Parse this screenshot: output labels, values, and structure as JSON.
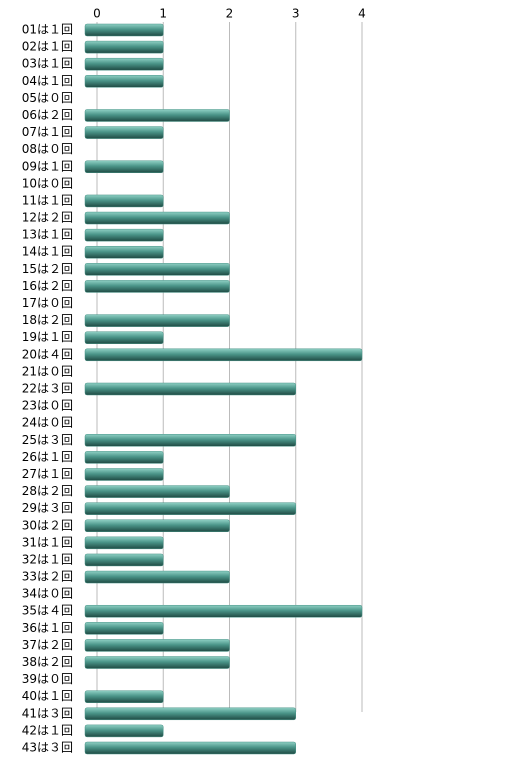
{
  "chart_data": {
    "type": "bar",
    "orientation": "horizontal",
    "categories": [
      "01は１回",
      "02は１回",
      "03は１回",
      "04は１回",
      "05は０回",
      "06は２回",
      "07は１回",
      "08は０回",
      "09は１回",
      "10は０回",
      "11は１回",
      "12は２回",
      "13は１回",
      "14は１回",
      "15は２回",
      "16は２回",
      "17は０回",
      "18は２回",
      "19は１回",
      "20は４回",
      "21は０回",
      "22は３回",
      "23は０回",
      "24は０回",
      "25は３回",
      "26は１回",
      "27は１回",
      "28は２回",
      "29は３回",
      "30は２回",
      "31は１回",
      "32は１回",
      "33は２回",
      "34は０回",
      "35は４回",
      "36は１回",
      "37は２回",
      "38は２回",
      "39は０回",
      "40は１回",
      "41は３回",
      "42は１回",
      "43は３回"
    ],
    "values": [
      1,
      1,
      1,
      1,
      0,
      2,
      1,
      0,
      1,
      0,
      1,
      2,
      1,
      1,
      2,
      2,
      0,
      2,
      1,
      4,
      0,
      3,
      0,
      0,
      3,
      1,
      1,
      2,
      3,
      2,
      1,
      1,
      2,
      0,
      4,
      1,
      2,
      2,
      0,
      1,
      3,
      1,
      3
    ],
    "color": "#4a9488",
    "xlim": [
      0,
      4
    ],
    "xticks": [
      0,
      1,
      2,
      3,
      4
    ],
    "grid": true
  }
}
